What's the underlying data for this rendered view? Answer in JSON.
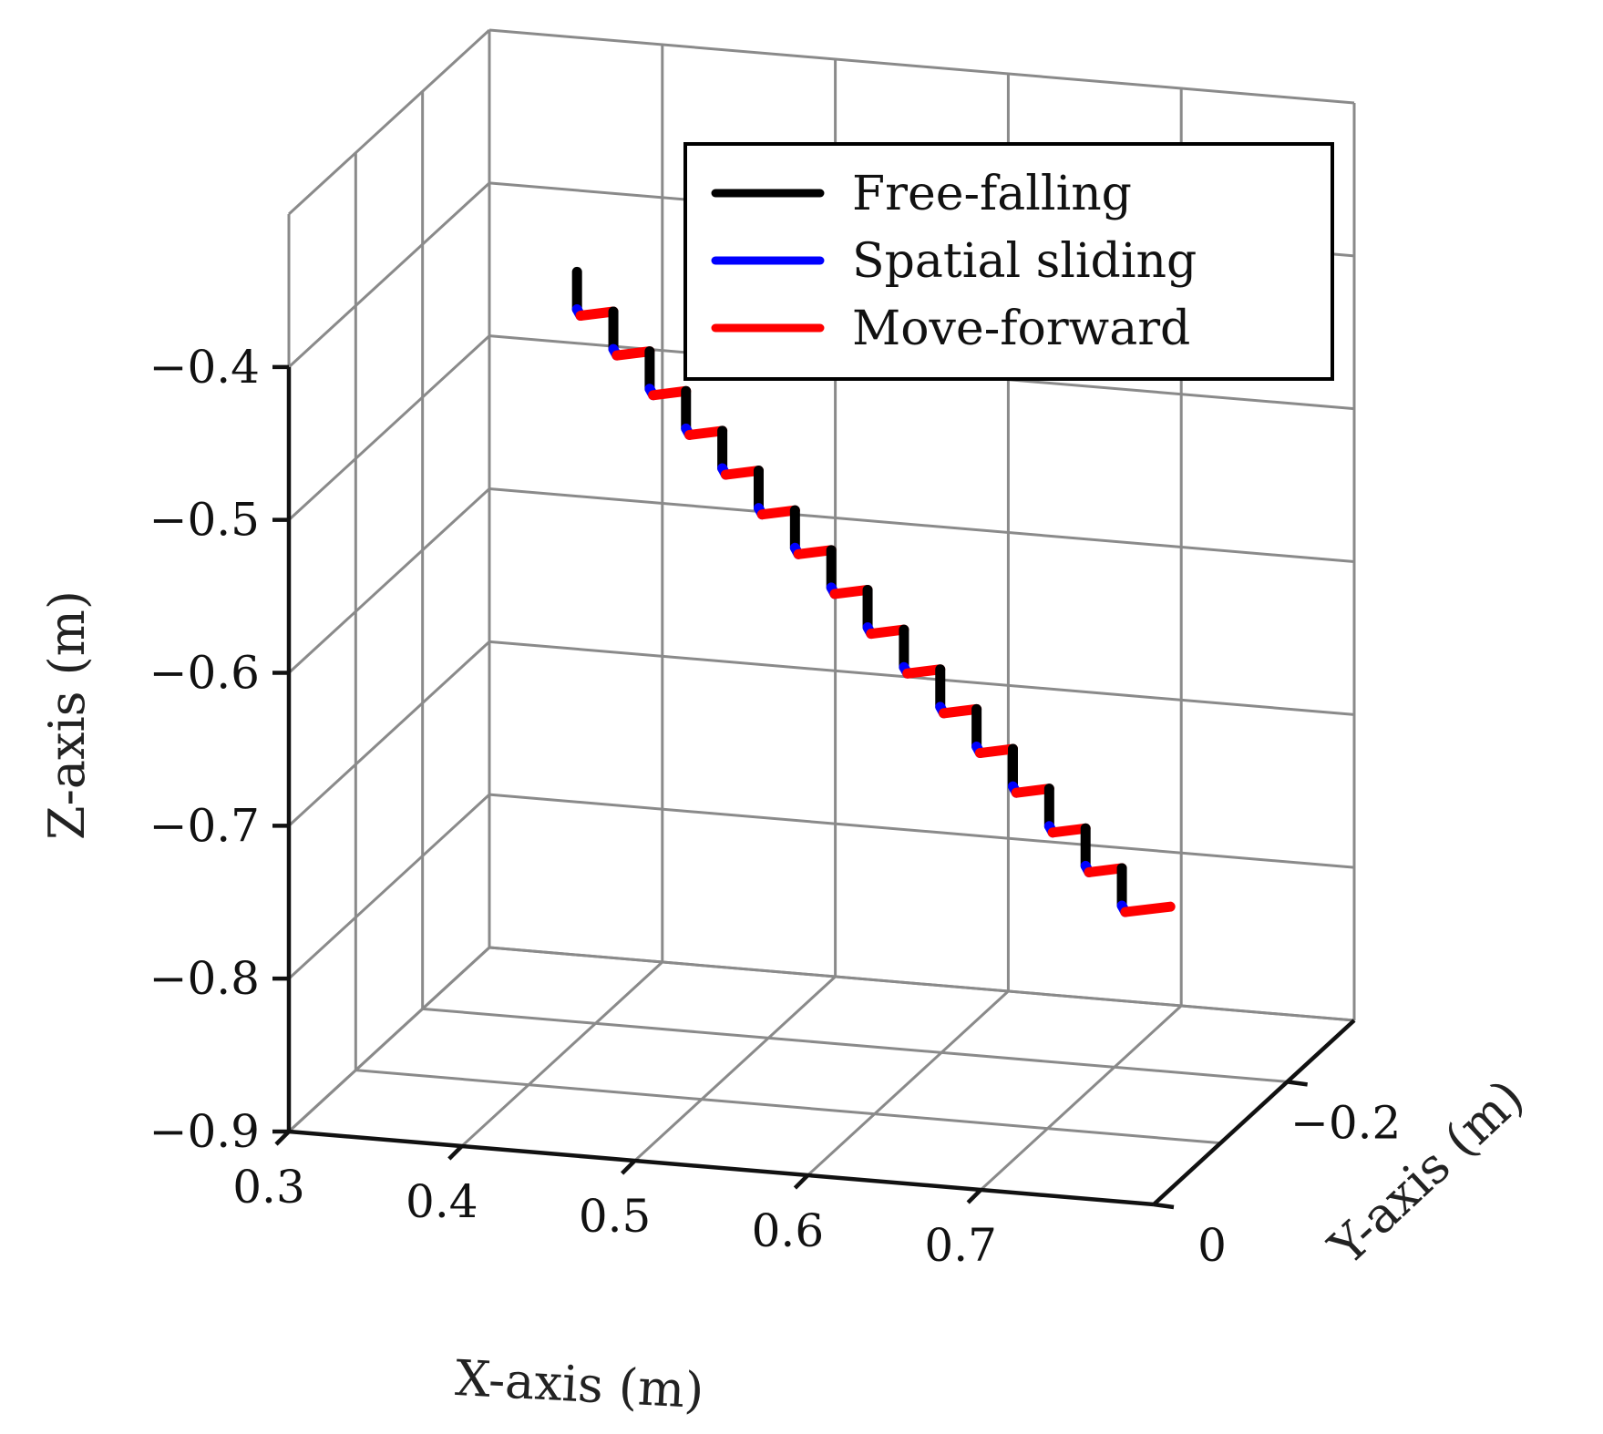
{
  "chart_data": {
    "type": "line3d",
    "title": "",
    "xlabel": "X-axis (m)",
    "ylabel": "Y-axis (m)",
    "zlabel": "Z-axis (m)",
    "xlim": [
      0.3,
      0.8
    ],
    "ylim": [
      -0.3,
      0.0
    ],
    "zlim": [
      -0.9,
      -0.3
    ],
    "x_ticks": [
      0.3,
      0.4,
      0.5,
      0.6,
      0.7
    ],
    "x_tick_labels": [
      "0.3",
      "0.4",
      "0.5",
      "0.6",
      "0.7"
    ],
    "y_ticks": [
      0.0,
      -0.2
    ],
    "y_tick_labels": [
      "0",
      "−0.2"
    ],
    "z_ticks": [
      -0.4,
      -0.5,
      -0.6,
      -0.7,
      -0.8,
      -0.9
    ],
    "z_tick_labels": [
      "−0.4",
      "−0.5",
      "−0.6",
      "−0.7",
      "−0.8",
      "−0.9"
    ],
    "grid": true,
    "legend_position": "top-right",
    "series": [
      {
        "name": "Free-falling",
        "color": "#000000"
      },
      {
        "name": "Spatial sliding",
        "color": "#0000ff"
      },
      {
        "name": "Move-forward",
        "color": "#ff0000"
      }
    ],
    "trajectory": {
      "start": {
        "x": 0.455,
        "y": -0.03,
        "z": -0.335
      },
      "steps": 16,
      "free_fall_dz": -0.0245,
      "slide_dz": -0.004,
      "slide_dx": 0.002,
      "forward_dx": 0.019,
      "forward_dy": 0.0,
      "forward_dz": 0.0045,
      "final_forward_dx": 0.026,
      "final_forward_dz": 0.006
    }
  }
}
